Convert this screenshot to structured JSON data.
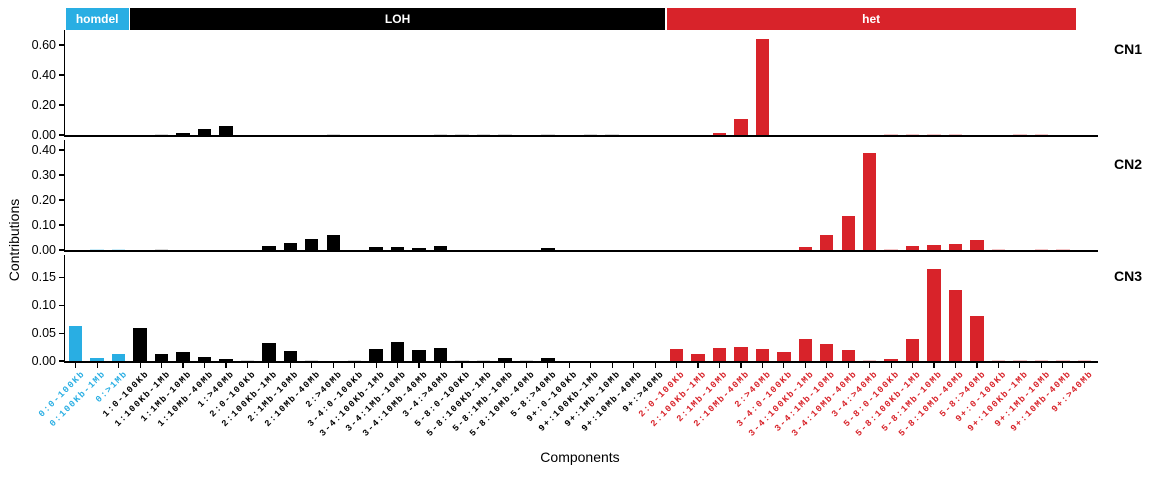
{
  "chart_data": {
    "type": "bar",
    "title": "",
    "xlabel": "Components",
    "ylabel": "Contributions",
    "legend_position": "top",
    "grid": false,
    "groups": [
      {
        "id": "homdel",
        "label": "homdel",
        "color": "#29aee3",
        "light_color": "#c9ecf9",
        "start": 0,
        "count": 3
      },
      {
        "id": "loh",
        "label": "LOH",
        "color": "#000000",
        "light_color": "#d9d9d9",
        "start": 3,
        "count": 25
      },
      {
        "id": "het",
        "label": "het",
        "color": "#d8232a",
        "light_color": "#f5c6c8",
        "start": 28,
        "count": 20
      }
    ],
    "categories": [
      "0:0-100Kb",
      "0:100Kb-1Mb",
      "0:>1Mb",
      "1:0-100Kb",
      "1:100Kb-1Mb",
      "1:1Mb-10Mb",
      "1:10Mb-40Mb",
      "1:>40Mb",
      "2:0-100Kb",
      "2:100Kb-1Mb",
      "2:1Mb-10Mb",
      "2:10Mb-40Mb",
      "2:>40Mb",
      "3-4:0-100Kb",
      "3-4:100Kb-1Mb",
      "3-4:1Mb-10Mb",
      "3-4:10Mb-40Mb",
      "3-4:>40Mb",
      "5-8:0-100Kb",
      "5-8:100Kb-1Mb",
      "5-8:1Mb-10Mb",
      "5-8:10Mb-40Mb",
      "5-8:>40Mb",
      "9+:0-100Kb",
      "9+:100Kb-1Mb",
      "9+:1Mb-10Mb",
      "9+:10Mb-40Mb",
      "9+:>40Mb",
      "2:0-100Kb",
      "2:100Kb-1Mb",
      "2:1Mb-10Mb",
      "2:10Mb-40Mb",
      "2:>40Mb",
      "3-4:0-100Kb",
      "3-4:100Kb-1Mb",
      "3-4:1Mb-10Mb",
      "3-4:10Mb-40Mb",
      "3-4:>40Mb",
      "5-8:0-100Kb",
      "5-8:100Kb-1Mb",
      "5-8:1Mb-10Mb",
      "5-8:10Mb-40Mb",
      "5-8:>40Mb",
      "9+:0-100Kb",
      "9+:100Kb-1Mb",
      "9+:1Mb-10Mb",
      "9+:10Mb-40Mb",
      "9+:>40Mb"
    ],
    "panels": [
      {
        "name": "CN1",
        "ylim": [
          0,
          0.7
        ],
        "yticks": [
          0,
          0.2,
          0.4,
          0.6
        ],
        "ytick_labels": [
          "0.00",
          "0.20",
          "0.40",
          "0.60"
        ],
        "values": [
          0,
          0,
          0,
          0,
          0.002,
          0.012,
          0.04,
          0.062,
          0,
          0,
          0,
          0,
          0.002,
          0,
          0,
          0,
          0,
          0.0015,
          0.0015,
          0.0015,
          0.0015,
          0,
          0.0015,
          0,
          0.0015,
          0.0015,
          0,
          0,
          0,
          0,
          0.012,
          0.11,
          0.64,
          0,
          0,
          0,
          0,
          0,
          0.0015,
          0.0015,
          0.0015,
          0.0015,
          0,
          0,
          0.0015,
          0.0015,
          0,
          0
        ]
      },
      {
        "name": "CN2",
        "ylim": [
          0,
          0.44
        ],
        "yticks": [
          0,
          0.1,
          0.2,
          0.3,
          0.4
        ],
        "ytick_labels": [
          "0.00",
          "0.10",
          "0.20",
          "0.30",
          "0.40"
        ],
        "values": [
          0,
          0.002,
          0.002,
          0,
          0.002,
          0,
          0,
          0,
          0,
          0.016,
          0.03,
          0.046,
          0.062,
          0,
          0.014,
          0.011,
          0.008,
          0.016,
          0,
          0,
          0,
          0,
          0.008,
          0,
          0,
          0,
          0,
          0,
          0,
          0,
          0,
          0,
          0,
          0,
          0.012,
          0.06,
          0.135,
          0.39,
          0.0015,
          0.016,
          0.022,
          0.024,
          0.04,
          0.0015,
          0,
          0.0015,
          0.0015,
          0
        ]
      },
      {
        "name": "CN3",
        "ylim": [
          0,
          0.19
        ],
        "yticks": [
          0,
          0.05,
          0.1,
          0.15
        ],
        "ytick_labels": [
          "0.00",
          "0.05",
          "0.10",
          "0.15"
        ],
        "values": [
          0.062,
          0.006,
          0.012,
          0.06,
          0.012,
          0.017,
          0.008,
          0.004,
          0.002,
          0.032,
          0.018,
          0.002,
          0,
          0.002,
          0.022,
          0.034,
          0.02,
          0.024,
          0.0015,
          0.002,
          0.006,
          0.0015,
          0.006,
          0,
          0,
          0,
          0,
          0,
          0.022,
          0.012,
          0.024,
          0.025,
          0.022,
          0.017,
          0.04,
          0.03,
          0.02,
          0.0015,
          0.004,
          0.04,
          0.165,
          0.128,
          0.08,
          0.002,
          0.002,
          0.002,
          0.002,
          0.002
        ]
      }
    ]
  }
}
